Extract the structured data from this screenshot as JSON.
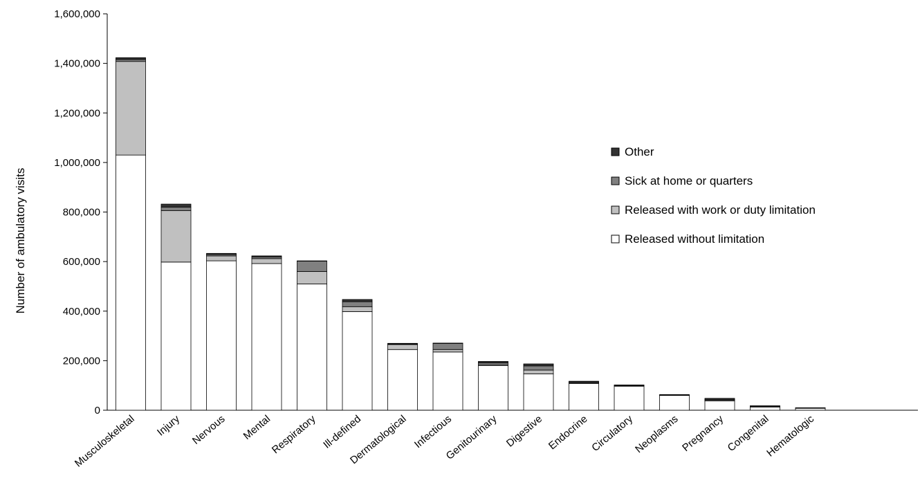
{
  "chart_data": {
    "type": "bar",
    "stacked": true,
    "title": "",
    "xlabel": "",
    "ylabel": "Number of ambulatory visits",
    "ylim": [
      0,
      1600000
    ],
    "yticks": [
      0,
      200000,
      400000,
      600000,
      800000,
      1000000,
      1200000,
      1400000,
      1600000
    ],
    "ytick_labels": [
      "0",
      "200,000",
      "400,000",
      "600,000",
      "800,000",
      "1,000,000",
      "1,200,000",
      "1,400,000",
      "1,600,000"
    ],
    "grid": false,
    "legend_position": "right",
    "categories": [
      "Musculoskeletal",
      "Injury",
      "Nervous",
      "Mental",
      "Respiratory",
      "Ill-defined",
      "Dermatological",
      "Infectious",
      "Genitourinary",
      "Digestive",
      "Endocrine",
      "Circulatory",
      "Neoplasms",
      "Pregnancy",
      "Congenital",
      "Hematologic"
    ],
    "series": [
      {
        "name": "Released without limitation",
        "color": "#ffffff",
        "values": [
          1030000,
          598000,
          603000,
          592000,
          510000,
          398000,
          245000,
          235000,
          180000,
          147000,
          108000,
          97000,
          60000,
          38000,
          13000,
          8000
        ]
      },
      {
        "name": "Released with work or duty limitation",
        "color": "#c0c0c0",
        "values": [
          378000,
          208000,
          20000,
          20000,
          50000,
          20000,
          20000,
          10000,
          4000,
          15000,
          3000,
          2000,
          1000,
          1000,
          3000,
          1000
        ]
      },
      {
        "name": "Sick at home or quarters",
        "color": "#808080",
        "values": [
          8000,
          14000,
          6000,
          7000,
          42000,
          20000,
          2000,
          25000,
          7000,
          17000,
          3000,
          2000,
          1000,
          4000,
          1000,
          1000
        ]
      },
      {
        "name": "Other",
        "color": "#333333",
        "values": [
          7000,
          12000,
          4000,
          4000,
          1000,
          9000,
          3000,
          1000,
          6000,
          8000,
          3000,
          1000,
          1000,
          5000,
          1000,
          0
        ]
      }
    ],
    "legend_order": [
      "Other",
      "Sick at home or quarters",
      "Released with work or duty limitation",
      "Released without limitation"
    ]
  }
}
